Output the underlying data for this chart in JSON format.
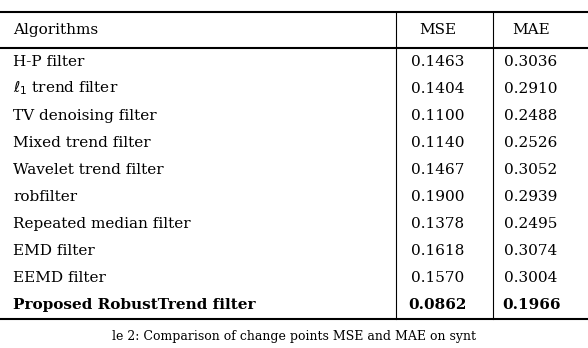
{
  "columns": [
    "Algorithms",
    "MSE",
    "MAE"
  ],
  "rows": [
    [
      "H-P filter",
      "0.1463",
      "0.3036"
    ],
    [
      "ell1 trend filter",
      "0.1404",
      "0.2910"
    ],
    [
      "TV denoising filter",
      "0.1100",
      "0.2488"
    ],
    [
      "Mixed trend filter",
      "0.1140",
      "0.2526"
    ],
    [
      "Wavelet trend filter",
      "0.1467",
      "0.3052"
    ],
    [
      "robfilter",
      "0.1900",
      "0.2939"
    ],
    [
      "Repeated median filter",
      "0.1378",
      "0.2495"
    ],
    [
      "EMD filter",
      "0.1618",
      "0.3074"
    ],
    [
      "EEMD filter",
      "0.1570",
      "0.3004"
    ],
    [
      "Proposed RobustTrend filter",
      "0.0862",
      "0.1966"
    ]
  ],
  "bold_last_row": true,
  "bg_color": "#ffffff",
  "text_color": "#000000",
  "font_size": 11,
  "header_font_size": 11,
  "caption": "le 2: Comparison of change points MSE and MAE on synt"
}
